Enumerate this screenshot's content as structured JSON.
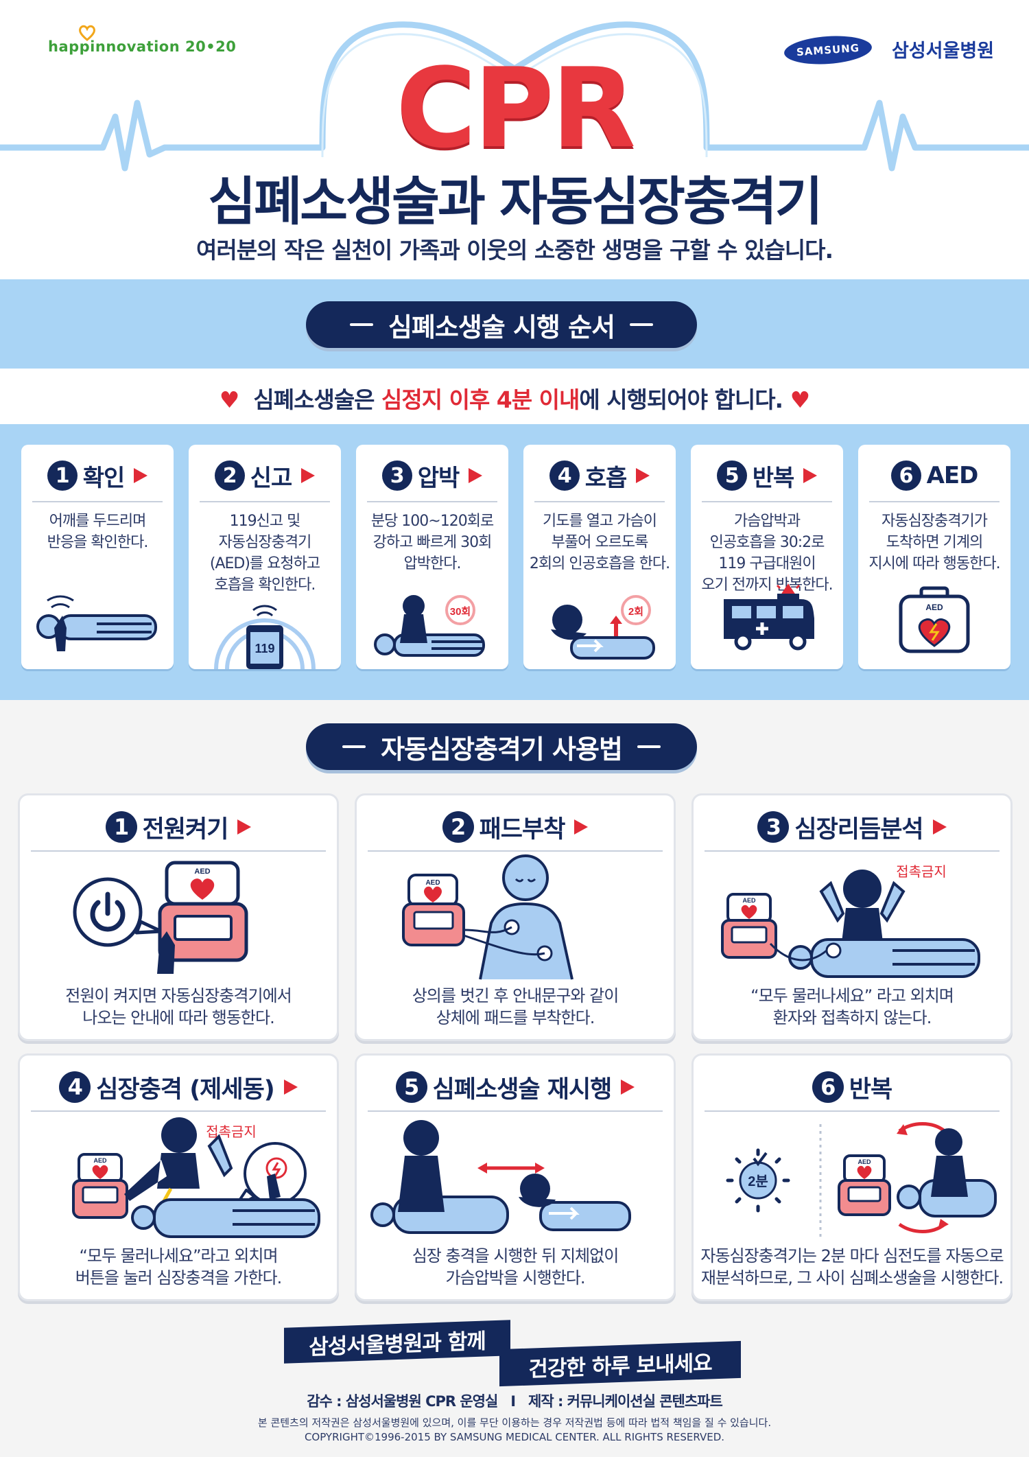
{
  "header": {
    "logo_left": "happinnovation 20•20",
    "logo_samsung": "SAMSUNG",
    "logo_hospital": "삼성서울병원",
    "cpr": "CPR",
    "title": "심폐소생술과 자동심장충격기",
    "subtitle": "여러분의 작은 실천이 가족과 이웃의 소중한 생명을 구할 수 있습니다."
  },
  "section1": {
    "pill": "심폐소생술 시행 순서",
    "notice_pre": "심폐소생술은 ",
    "notice_red": "심정지 이후 4분 이내",
    "notice_post": "에 시행되어야 합니다.",
    "steps": [
      {
        "num": "1",
        "title": "확인",
        "desc": "어깨를 두드리며\n반응을 확인한다."
      },
      {
        "num": "2",
        "title": "신고",
        "desc": "119신고 및\n자동심장충격기\n(AED)를 요청하고\n호흡을 확인한다.",
        "badge": "119"
      },
      {
        "num": "3",
        "title": "압박",
        "desc": "분당 100~120회로\n강하고 빠르게 30회\n압박한다.",
        "badge": "30회"
      },
      {
        "num": "4",
        "title": "호흡",
        "desc": "기도를 열고 가슴이\n부풀어 오르도록\n2회의 인공호흡을 한다.",
        "badge": "2회"
      },
      {
        "num": "5",
        "title": "반복",
        "desc": "가슴압박과\n인공호흡을 30:2로\n119 구급대원이\n오기 전까지 반복한다."
      },
      {
        "num": "6",
        "title": "AED",
        "desc": "자동심장충격기가\n도착하면 기계의\n지시에 따라 행동한다.",
        "badge": "AED"
      }
    ]
  },
  "section2": {
    "pill": "자동심장충격기 사용법",
    "aed_label": "AED",
    "no_touch": "접촉금지",
    "timer": "2분",
    "cards": [
      {
        "num": "1",
        "title": "전원켜기",
        "desc": "전원이 켜지면 자동심장충격기에서\n나오는 안내에 따라 행동한다."
      },
      {
        "num": "2",
        "title": "패드부착",
        "desc": "상의를 벗긴 후  안내문구와 같이\n상체에 패드를 부착한다."
      },
      {
        "num": "3",
        "title": "심장리듬분석",
        "desc": "“모두 물러나세요” 라고 외치며\n환자와 접촉하지 않는다."
      },
      {
        "num": "4",
        "title": "심장충격 (제세동)",
        "desc": "“모두 물러나세요”라고 외치며\n버튼을 눌러 심장충격을 가한다."
      },
      {
        "num": "5",
        "title": "심폐소생술 재시행",
        "desc": "심장 충격을 시행한 뒤 지체없이\n가슴압박을 시행한다."
      },
      {
        "num": "6",
        "title": "반복",
        "desc": "자동심장충격기는 2분 마다 심전도를 자동으로\n재분석하므로, 그 사이 심폐소생술을 시행한다."
      }
    ]
  },
  "footer": {
    "banner1": "삼성서울병원과 함께",
    "banner2": "건강한 하루 보내세요",
    "credits": "감수 : 삼성서울병원 CPR 운영실   I   제작 : 커뮤니케이션실 콘텐츠파트",
    "copyright1": "본 콘텐츠의 저작권은 삼성서울병원에 있으며, 이를 무단 이용하는 경우 저작권법 등에 따라 법적 책임을 질 수 있습니다.",
    "copyright2": "COPYRIGHT©1996-2015 BY SAMSUNG MEDICAL CENTER. ALL RIGHTS RESERVED."
  },
  "colors": {
    "navy": "#14285a",
    "red": "#e02a36",
    "light_blue": "#a9d4f5",
    "body_blue": "#a9cdf2"
  }
}
